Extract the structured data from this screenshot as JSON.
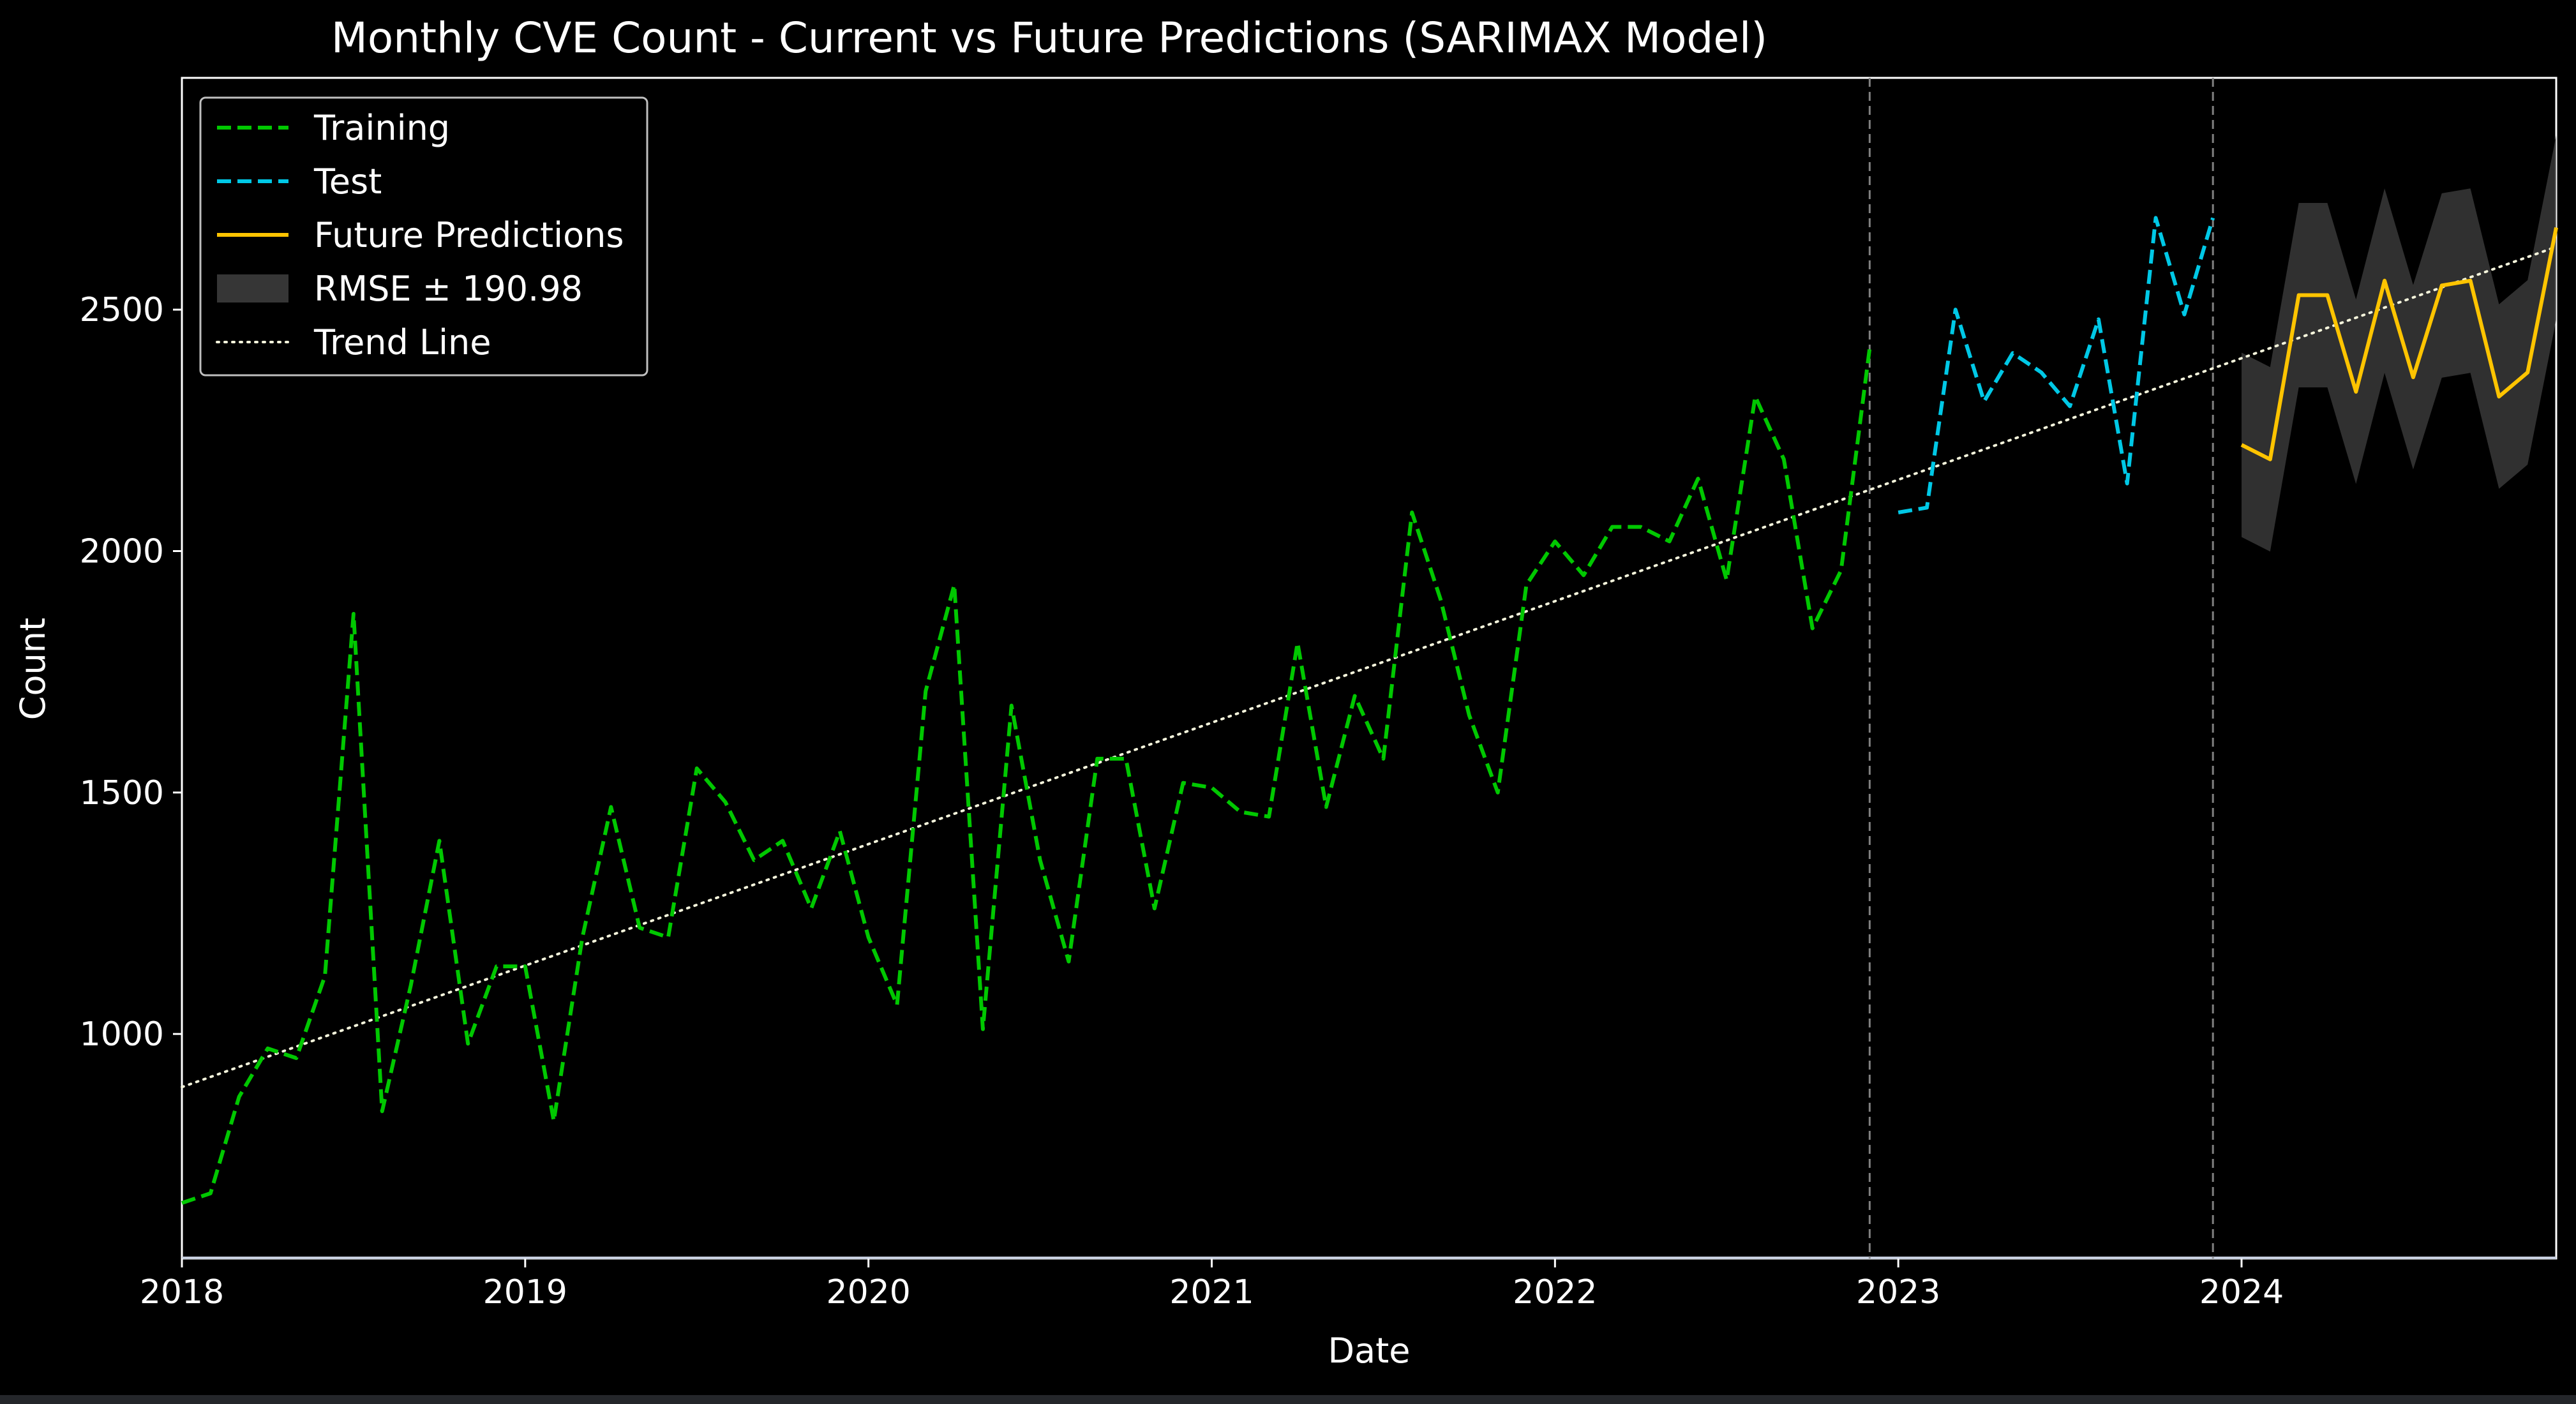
{
  "chart_data": {
    "type": "line",
    "title": "Monthly CVE Count - Current vs Future Predictions (SARIMAX Model)",
    "xlabel": "Date",
    "ylabel": "Count",
    "x_ticks": [
      "2018",
      "2019",
      "2020",
      "2021",
      "2022",
      "2023",
      "2024"
    ],
    "y_ticks": [
      1000,
      1500,
      2000,
      2500
    ],
    "xlim": [
      "2018-01",
      "2024-12"
    ],
    "ylim": [
      535,
      2980
    ],
    "legend_position": "top-left",
    "grid": false,
    "vlines": [
      "2022-12",
      "2023-12"
    ],
    "series": [
      {
        "name": "Training",
        "style": "dashed",
        "color": "#00c800",
        "x": [
          "2018-01",
          "2018-02",
          "2018-03",
          "2018-04",
          "2018-05",
          "2018-06",
          "2018-07",
          "2018-08",
          "2018-09",
          "2018-10",
          "2018-11",
          "2018-12",
          "2019-01",
          "2019-02",
          "2019-03",
          "2019-04",
          "2019-05",
          "2019-06",
          "2019-07",
          "2019-08",
          "2019-09",
          "2019-10",
          "2019-11",
          "2019-12",
          "2020-01",
          "2020-02",
          "2020-03",
          "2020-04",
          "2020-05",
          "2020-06",
          "2020-07",
          "2020-08",
          "2020-09",
          "2020-10",
          "2020-11",
          "2020-12",
          "2021-01",
          "2021-02",
          "2021-03",
          "2021-04",
          "2021-05",
          "2021-06",
          "2021-07",
          "2021-08",
          "2021-09",
          "2021-10",
          "2021-11",
          "2021-12",
          "2022-01",
          "2022-02",
          "2022-03",
          "2022-04",
          "2022-05",
          "2022-06",
          "2022-07",
          "2022-08",
          "2022-09",
          "2022-10",
          "2022-11",
          "2022-12"
        ],
        "values": [
          650,
          670,
          870,
          970,
          950,
          1120,
          1870,
          840,
          1100,
          1400,
          980,
          1140,
          1140,
          820,
          1200,
          1470,
          1220,
          1200,
          1550,
          1480,
          1360,
          1400,
          1260,
          1420,
          1200,
          1060,
          1710,
          1930,
          1010,
          1680,
          1360,
          1150,
          1570,
          1570,
          1260,
          1520,
          1510,
          1460,
          1450,
          1810,
          1470,
          1700,
          1570,
          2080,
          1900,
          1660,
          1500,
          1930,
          2020,
          1950,
          2050,
          2050,
          2020,
          2150,
          1940,
          2320,
          2190,
          1840,
          1960,
          2420
        ]
      },
      {
        "name": "Test",
        "style": "dashed",
        "color": "#00c8e6",
        "x": [
          "2023-01",
          "2023-02",
          "2023-03",
          "2023-04",
          "2023-05",
          "2023-06",
          "2023-07",
          "2023-08",
          "2023-09",
          "2023-10",
          "2023-11",
          "2023-12"
        ],
        "values": [
          2080,
          2090,
          2500,
          2310,
          2410,
          2370,
          2300,
          2480,
          2140,
          2690,
          2490,
          2690
        ]
      },
      {
        "name": "Future Predictions",
        "style": "solid",
        "color": "#ffc400",
        "x": [
          "2024-01",
          "2024-02",
          "2024-03",
          "2024-04",
          "2024-05",
          "2024-06",
          "2024-07",
          "2024-08",
          "2024-09",
          "2024-10",
          "2024-11",
          "2024-12"
        ],
        "values": [
          2220,
          2190,
          2530,
          2530,
          2330,
          2560,
          2360,
          2550,
          2560,
          2320,
          2370,
          2670
        ]
      },
      {
        "name": "RMSE ± 190.98",
        "style": "band",
        "color": "#444444",
        "band_halfwidth": 190.98,
        "x": [
          "2024-01",
          "2024-02",
          "2024-03",
          "2024-04",
          "2024-05",
          "2024-06",
          "2024-07",
          "2024-08",
          "2024-09",
          "2024-10",
          "2024-11",
          "2024-12"
        ],
        "values": [
          2220,
          2190,
          2530,
          2530,
          2330,
          2560,
          2360,
          2550,
          2560,
          2320,
          2370,
          2670
        ]
      },
      {
        "name": "Trend Line",
        "style": "dotted",
        "color": "#f5f5dc",
        "x": [
          "2018-01",
          "2024-12"
        ],
        "values": [
          890,
          2630
        ]
      }
    ]
  }
}
